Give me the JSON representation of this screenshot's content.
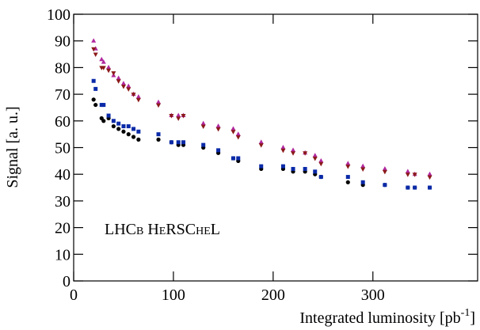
{
  "chart_data": {
    "type": "scatter",
    "ylabel": "Signal [a. u.]",
    "xlabel": [
      "Integrated luminosity [pb",
      "-1",
      "]"
    ],
    "annotation": "LHCb HeRSCheL",
    "xlim": [
      0,
      405
    ],
    "xticks": [
      0,
      100,
      200,
      300
    ],
    "ylim": [
      0,
      100
    ],
    "yticks": [
      0,
      10,
      20,
      30,
      40,
      50,
      60,
      70,
      80,
      90,
      100
    ],
    "grid": false,
    "x": [
      20,
      22,
      28,
      30,
      35,
      40,
      45,
      50,
      55,
      60,
      65,
      85,
      98,
      105,
      110,
      130,
      145,
      160,
      165,
      188,
      210,
      220,
      232,
      242,
      248,
      275,
      290,
      312,
      335,
      342,
      357
    ],
    "series": [
      {
        "color": "#000000",
        "marker": "circle",
        "values": [
          68,
          66,
          61,
          60,
          61,
          58,
          57,
          56,
          55,
          54,
          53,
          53,
          52,
          51,
          51,
          50,
          48,
          46,
          45,
          42,
          42,
          41,
          41,
          40,
          39,
          37,
          36,
          36,
          35,
          35,
          35
        ]
      },
      {
        "color": "#0a2aa8",
        "marker": "square",
        "values": [
          75,
          72,
          66,
          66,
          62,
          60,
          59,
          58,
          58,
          57,
          56,
          55,
          52,
          52,
          52,
          51,
          49,
          46,
          46,
          43,
          43,
          42,
          42,
          41,
          39,
          39,
          37,
          36,
          35,
          35,
          35
        ]
      },
      {
        "color": "#b0289e",
        "marker": "triangle-up",
        "values": [
          90,
          87,
          83,
          82,
          80,
          77,
          76,
          74,
          73,
          70,
          69,
          67,
          62,
          62,
          62,
          59,
          58,
          57,
          55,
          52,
          50,
          49,
          48,
          47,
          45,
          44,
          43,
          42,
          41,
          40,
          40
        ]
      },
      {
        "color": "#8b1a1a",
        "marker": "triangle-down",
        "values": [
          87,
          85,
          80,
          80,
          79,
          78,
          75,
          73,
          72,
          70,
          68,
          66,
          62,
          61,
          62,
          58,
          57,
          56,
          54,
          51,
          49,
          48,
          48,
          46,
          44,
          43,
          42,
          41,
          40,
          40,
          39
        ]
      }
    ]
  }
}
